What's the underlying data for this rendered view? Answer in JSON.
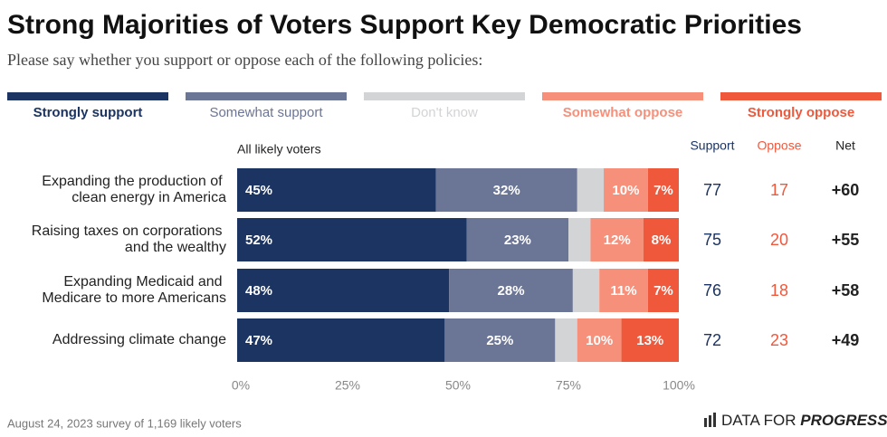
{
  "chart_data": {
    "type": "stacked_barh",
    "title": "Strong Majorities of Voters Support Key Democratic Priorities",
    "subtitle": "Please say whether you support or oppose each of the following policies:",
    "panel_label": "All likely voters",
    "categories": [
      "Expanding the production of clean energy in America",
      "Raising taxes on corporations and the wealthy",
      "Expanding Medicaid and Medicare to more Americans",
      "Addressing climate change"
    ],
    "series": [
      {
        "name": "Strongly support",
        "color": "#1b3461",
        "values": [
          45,
          52,
          48,
          47
        ],
        "value_labels": [
          "45%",
          "52%",
          "48%",
          "47%"
        ]
      },
      {
        "name": "Somewhat support",
        "color": "#6b7595",
        "values": [
          32,
          23,
          28,
          25
        ],
        "value_labels": [
          "32%",
          "23%",
          "28%",
          "25%"
        ]
      },
      {
        "name": "Don't know",
        "color": "#d3d4d6",
        "values": [
          6,
          5,
          6,
          5
        ]
      },
      {
        "name": "Somewhat oppose",
        "color": "#f7907a",
        "values": [
          10,
          12,
          11,
          10
        ],
        "value_labels": [
          "10%",
          "12%",
          "11%",
          "10%"
        ]
      },
      {
        "name": "Strongly oppose",
        "color": "#f0583c",
        "values": [
          7,
          8,
          7,
          13
        ],
        "value_labels": [
          "7%",
          "8%",
          "7%",
          "13%"
        ]
      }
    ],
    "xlim": [
      0,
      100
    ],
    "xticks": [
      {
        "value": 0,
        "label": "0%"
      },
      {
        "value": 25,
        "label": "25%"
      },
      {
        "value": 50,
        "label": "50%"
      },
      {
        "value": 75,
        "label": "75%"
      },
      {
        "value": 100,
        "label": "100%"
      }
    ],
    "table": {
      "headers": [
        "Support",
        "Oppose",
        "Net"
      ],
      "header_colors": [
        "#1b3461",
        "#f0583c",
        "#222222"
      ],
      "support": [
        77,
        75,
        76,
        72
      ],
      "oppose": [
        17,
        20,
        18,
        23
      ],
      "net": [
        "+60",
        "+55",
        "+58",
        "+49"
      ]
    },
    "source": "August 24, 2023 survey of 1,169 likely voters",
    "brand": [
      "DATA FOR",
      "PROGRESS"
    ]
  }
}
